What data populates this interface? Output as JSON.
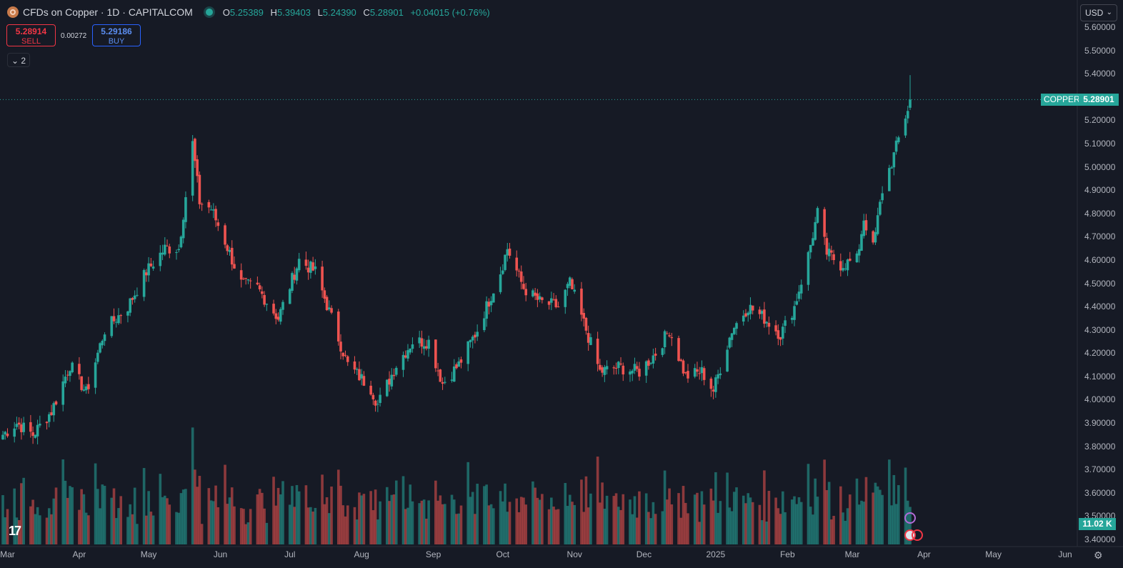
{
  "header": {
    "symbol_title": "CFDs on Copper · 1D · CAPITALCOM",
    "ohlc": {
      "o_label": "O",
      "o": "5.25389",
      "h_label": "H",
      "h": "5.39403",
      "l_label": "L",
      "l": "5.24390",
      "c_label": "C",
      "c": "5.28901",
      "change": "+0.04015 (+0.76%)"
    }
  },
  "trade": {
    "sell_price": "5.28914",
    "sell_label": "SELL",
    "spread": "0.00272",
    "buy_price": "5.29186",
    "buy_label": "BUY"
  },
  "indicators_toggle": "2",
  "currency": "USD",
  "last_price": {
    "symbol": "COPPER",
    "value": "5.28901"
  },
  "volume_label": "11.02 K",
  "colors": {
    "up": "#26a69a",
    "down": "#ef5350",
    "background": "#161a25"
  },
  "chart_data": {
    "type": "candlestick",
    "title": "CFDs on Copper · 1D · CAPITALCOM",
    "y_ticks": [
      "5.60000",
      "5.50000",
      "5.40000",
      "5.30000",
      "5.20000",
      "5.10000",
      "5.00000",
      "4.90000",
      "4.80000",
      "4.70000",
      "4.60000",
      "4.50000",
      "4.40000",
      "4.30000",
      "4.20000",
      "4.10000",
      "4.00000",
      "3.90000",
      "3.80000",
      "3.70000",
      "3.60000",
      "3.50000",
      "3.40000"
    ],
    "ylim": [
      3.4,
      5.6
    ],
    "x_ticks": [
      "Mar",
      "Apr",
      "May",
      "Jun",
      "Jul",
      "Aug",
      "Sep",
      "Oct",
      "Nov",
      "Dec",
      "2025",
      "Feb",
      "Mar",
      "Apr",
      "May",
      "Jun"
    ],
    "series_anchors": [
      {
        "date": "2024-02-28",
        "close": 3.85
      },
      {
        "date": "2024-03-05",
        "close": 3.9
      },
      {
        "date": "2024-03-12",
        "close": 3.85
      },
      {
        "date": "2024-03-20",
        "close": 3.95
      },
      {
        "date": "2024-03-28",
        "close": 4.15
      },
      {
        "date": "2024-04-04",
        "close": 4.03
      },
      {
        "date": "2024-04-12",
        "close": 4.3
      },
      {
        "date": "2024-04-22",
        "close": 4.4
      },
      {
        "date": "2024-04-30",
        "close": 4.55
      },
      {
        "date": "2024-05-08",
        "close": 4.65
      },
      {
        "date": "2024-05-14",
        "close": 4.65
      },
      {
        "date": "2024-05-20",
        "close": 5.1
      },
      {
        "date": "2024-05-23",
        "close": 4.85
      },
      {
        "date": "2024-05-28",
        "close": 4.82
      },
      {
        "date": "2024-06-03",
        "close": 4.68
      },
      {
        "date": "2024-06-10",
        "close": 4.5
      },
      {
        "date": "2024-06-17",
        "close": 4.48
      },
      {
        "date": "2024-06-26",
        "close": 4.35
      },
      {
        "date": "2024-07-05",
        "close": 4.6
      },
      {
        "date": "2024-07-12",
        "close": 4.55
      },
      {
        "date": "2024-07-19",
        "close": 4.35
      },
      {
        "date": "2024-07-26",
        "close": 4.15
      },
      {
        "date": "2024-08-05",
        "close": 4.05
      },
      {
        "date": "2024-08-08",
        "close": 3.98
      },
      {
        "date": "2024-08-16",
        "close": 4.15
      },
      {
        "date": "2024-08-23",
        "close": 4.25
      },
      {
        "date": "2024-08-30",
        "close": 4.25
      },
      {
        "date": "2024-09-05",
        "close": 4.07
      },
      {
        "date": "2024-09-12",
        "close": 4.15
      },
      {
        "date": "2024-09-20",
        "close": 4.3
      },
      {
        "date": "2024-09-30",
        "close": 4.55
      },
      {
        "date": "2024-10-03",
        "close": 4.65
      },
      {
        "date": "2024-10-10",
        "close": 4.48
      },
      {
        "date": "2024-10-17",
        "close": 4.42
      },
      {
        "date": "2024-10-25",
        "close": 4.4
      },
      {
        "date": "2024-10-30",
        "close": 4.5
      },
      {
        "date": "2024-11-06",
        "close": 4.3
      },
      {
        "date": "2024-11-12",
        "close": 4.12
      },
      {
        "date": "2024-11-20",
        "close": 4.14
      },
      {
        "date": "2024-11-29",
        "close": 4.12
      },
      {
        "date": "2024-12-06",
        "close": 4.2
      },
      {
        "date": "2024-12-12",
        "close": 4.3
      },
      {
        "date": "2024-12-19",
        "close": 4.1
      },
      {
        "date": "2024-12-26",
        "close": 4.12
      },
      {
        "date": "2024-12-31",
        "close": 4.04
      },
      {
        "date": "2025-01-08",
        "close": 4.3
      },
      {
        "date": "2025-01-15",
        "close": 4.4
      },
      {
        "date": "2025-01-22",
        "close": 4.35
      },
      {
        "date": "2025-01-29",
        "close": 4.28
      },
      {
        "date": "2025-02-04",
        "close": 4.4
      },
      {
        "date": "2025-02-10",
        "close": 4.62
      },
      {
        "date": "2025-02-14",
        "close": 4.8
      },
      {
        "date": "2025-02-18",
        "close": 4.63
      },
      {
        "date": "2025-02-24",
        "close": 4.58
      },
      {
        "date": "2025-03-03",
        "close": 4.6
      },
      {
        "date": "2025-03-06",
        "close": 4.78
      },
      {
        "date": "2025-03-10",
        "close": 4.65
      },
      {
        "date": "2025-03-14",
        "close": 4.9
      },
      {
        "date": "2025-03-19",
        "close": 5.05
      },
      {
        "date": "2025-03-21",
        "close": 5.12
      },
      {
        "date": "2025-03-25",
        "close": 5.25
      },
      {
        "date": "2025-03-26",
        "close": 5.28901
      }
    ],
    "last_bar": {
      "open": 5.25389,
      "high": 5.39403,
      "low": 5.2439,
      "close": 5.28901
    },
    "volume_last": "11.02 K"
  }
}
